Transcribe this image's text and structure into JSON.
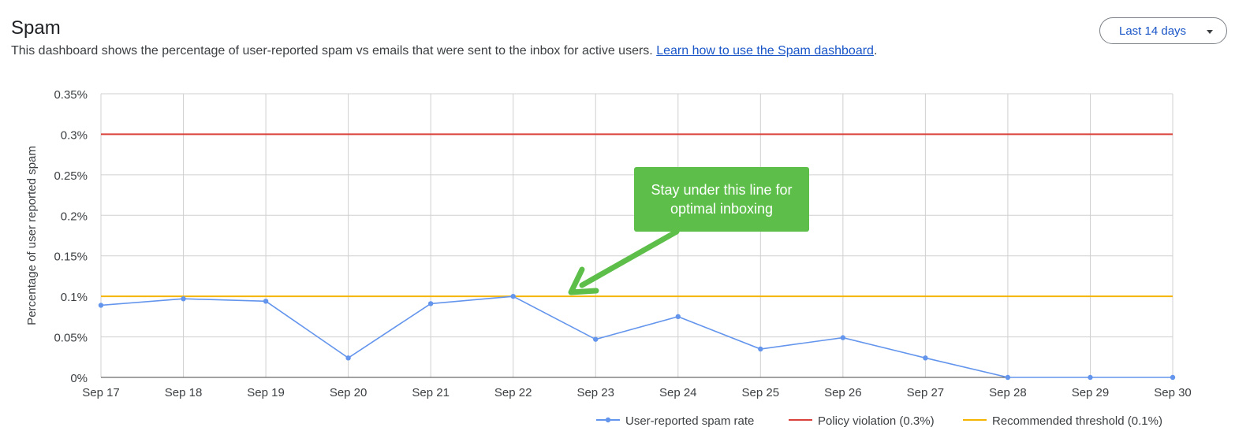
{
  "header": {
    "title": "Spam",
    "description": "This dashboard shows the percentage of user-reported spam vs emails that were sent to the inbox for active users. ",
    "link_text": "Learn how to use the Spam dashboard",
    "after_link": "."
  },
  "range_select": {
    "selected": "Last 14 days",
    "icon": "caret-down-icon"
  },
  "annotation": {
    "text_line1": "Stay under this line for",
    "text_line2": "optimal inboxing",
    "color": "#5dbf4a"
  },
  "chart_data": {
    "type": "line",
    "categories": [
      "Sep 17",
      "Sep 18",
      "Sep 19",
      "Sep 20",
      "Sep 21",
      "Sep 22",
      "Sep 23",
      "Sep 24",
      "Sep 25",
      "Sep 26",
      "Sep 27",
      "Sep 28",
      "Sep 29",
      "Sep 30"
    ],
    "series": [
      {
        "name": "User-reported spam rate",
        "color": "#6495ed",
        "values": [
          0.089,
          0.097,
          0.094,
          0.024,
          0.091,
          0.1,
          0.047,
          0.075,
          0.035,
          0.049,
          0.024,
          0.0,
          0.0,
          0.0
        ]
      },
      {
        "name": "Policy violation (0.3%)",
        "color": "#d9413a",
        "values": [
          0.3,
          0.3,
          0.3,
          0.3,
          0.3,
          0.3,
          0.3,
          0.3,
          0.3,
          0.3,
          0.3,
          0.3,
          0.3,
          0.3
        ]
      },
      {
        "name": "Recommended threshold (0.1%)",
        "color": "#f4b400",
        "values": [
          0.1,
          0.1,
          0.1,
          0.1,
          0.1,
          0.1,
          0.1,
          0.1,
          0.1,
          0.1,
          0.1,
          0.1,
          0.1,
          0.1
        ]
      }
    ],
    "ylabel": "Percentage of user reported spam",
    "xlabel": "",
    "ylim": [
      0,
      0.35
    ],
    "yticks": [
      {
        "value": 0.35,
        "label": "0.35%"
      },
      {
        "value": 0.3,
        "label": "0.3%"
      },
      {
        "value": 0.25,
        "label": "0.25%"
      },
      {
        "value": 0.2,
        "label": "0.2%"
      },
      {
        "value": 0.15,
        "label": "0.15%"
      },
      {
        "value": 0.1,
        "label": "0.1%"
      },
      {
        "value": 0.05,
        "label": "0.05%"
      },
      {
        "value": 0.0,
        "label": "0%"
      }
    ],
    "grid": true,
    "legend_position": "bottom-right"
  }
}
